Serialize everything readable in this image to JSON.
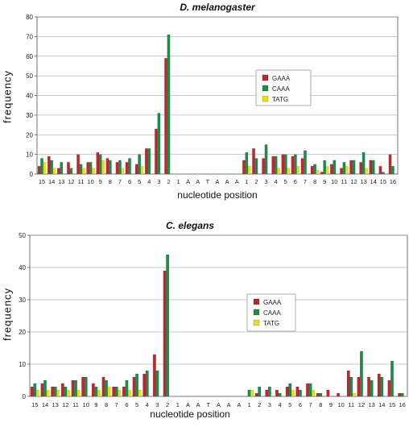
{
  "colors": {
    "GAAA": "#c0262d",
    "CAAA": "#1f8a4c",
    "TATG": "#e6df1f",
    "grid": "#9a9a9a",
    "axis": "#555555"
  },
  "chart_data": [
    {
      "type": "bar",
      "title": "D. melanogaster",
      "xlabel": "nucleotide position",
      "ylabel": "frequency",
      "ylim": [
        0,
        80
      ],
      "yticks": [
        "0",
        "10",
        "20",
        "30",
        "40",
        "50",
        "60",
        "70",
        "80"
      ],
      "grid": true,
      "legend_position": "right",
      "categories": [
        "15",
        "14",
        "13",
        "12",
        "11",
        "10",
        "9",
        "8",
        "7",
        "6",
        "5",
        "4",
        "3",
        "2",
        "1",
        "A",
        "A",
        "T",
        "A",
        "A",
        "A",
        "1",
        "2",
        "3",
        "4",
        "5",
        "6",
        "7",
        "8",
        "9",
        "10",
        "11",
        "12",
        "13",
        "14",
        "15",
        "16"
      ],
      "series": [
        {
          "name": "GAAA",
          "values": [
            4,
            9,
            3,
            6,
            10,
            6,
            11,
            8,
            6,
            6,
            5,
            13,
            23,
            59,
            0,
            0,
            0,
            0,
            0,
            0,
            0,
            7,
            13,
            8,
            9,
            10,
            9,
            8,
            4,
            1,
            5,
            3,
            7,
            6,
            7,
            4,
            10
          ]
        },
        {
          "name": "CAAA",
          "values": [
            8,
            7,
            6,
            3,
            5,
            6,
            10,
            7,
            7,
            8,
            10,
            13,
            31,
            71,
            0,
            0,
            0,
            0,
            0,
            0,
            0,
            11,
            8,
            15,
            9,
            10,
            10,
            12,
            5,
            7,
            7,
            6,
            7,
            11,
            7,
            1,
            4
          ]
        },
        {
          "name": "TATG",
          "values": [
            6,
            3,
            0,
            0,
            3,
            3,
            7,
            0,
            3,
            0,
            4,
            0,
            0,
            0,
            0,
            0,
            0,
            0,
            0,
            0,
            0,
            4,
            0,
            0,
            3,
            3,
            4,
            0,
            2,
            4,
            0,
            4,
            0,
            3,
            0,
            0,
            0
          ]
        }
      ]
    },
    {
      "type": "bar",
      "title": "C. elegans",
      "xlabel": "nucleotide position",
      "ylabel": "frequency",
      "ylim": [
        0,
        50
      ],
      "yticks": [
        "0",
        "10",
        "20",
        "30",
        "40",
        "50"
      ],
      "grid": true,
      "legend_position": "center",
      "categories": [
        "15",
        "14",
        "13",
        "12",
        "11",
        "10",
        "9",
        "8",
        "7",
        "6",
        "5",
        "4",
        "3",
        "2",
        "1",
        "A",
        "A",
        "T",
        "A",
        "A",
        "A",
        "1",
        "2",
        "3",
        "4",
        "5",
        "6",
        "7",
        "8",
        "9",
        "10",
        "11",
        "12",
        "13",
        "14",
        "15",
        "16"
      ],
      "series": [
        {
          "name": "GAAA",
          "values": [
            3,
            4,
            3,
            4,
            5,
            6,
            4,
            6,
            3,
            3,
            6,
            7,
            13,
            39,
            0,
            0,
            0,
            0,
            0,
            0,
            0,
            0,
            1,
            2,
            2,
            3,
            3,
            4,
            1,
            2,
            1,
            8,
            6,
            6,
            7,
            5,
            1
          ]
        },
        {
          "name": "CAAA",
          "values": [
            4,
            5,
            3,
            3,
            5,
            6,
            3,
            5,
            3,
            5,
            7,
            8,
            8,
            44,
            0,
            0,
            0,
            0,
            0,
            0,
            0,
            2,
            3,
            3,
            1,
            4,
            2,
            4,
            1,
            0,
            0,
            6,
            14,
            5,
            6,
            11,
            1
          ]
        },
        {
          "name": "TATG",
          "values": [
            2,
            2,
            2,
            2,
            2,
            0,
            2,
            3,
            2,
            2,
            2,
            0,
            0,
            0,
            0,
            0,
            0,
            0,
            0,
            0,
            0,
            2,
            0,
            0,
            0,
            2,
            0,
            2,
            0,
            0,
            0,
            1,
            0,
            0,
            0,
            0,
            0
          ]
        }
      ]
    }
  ]
}
